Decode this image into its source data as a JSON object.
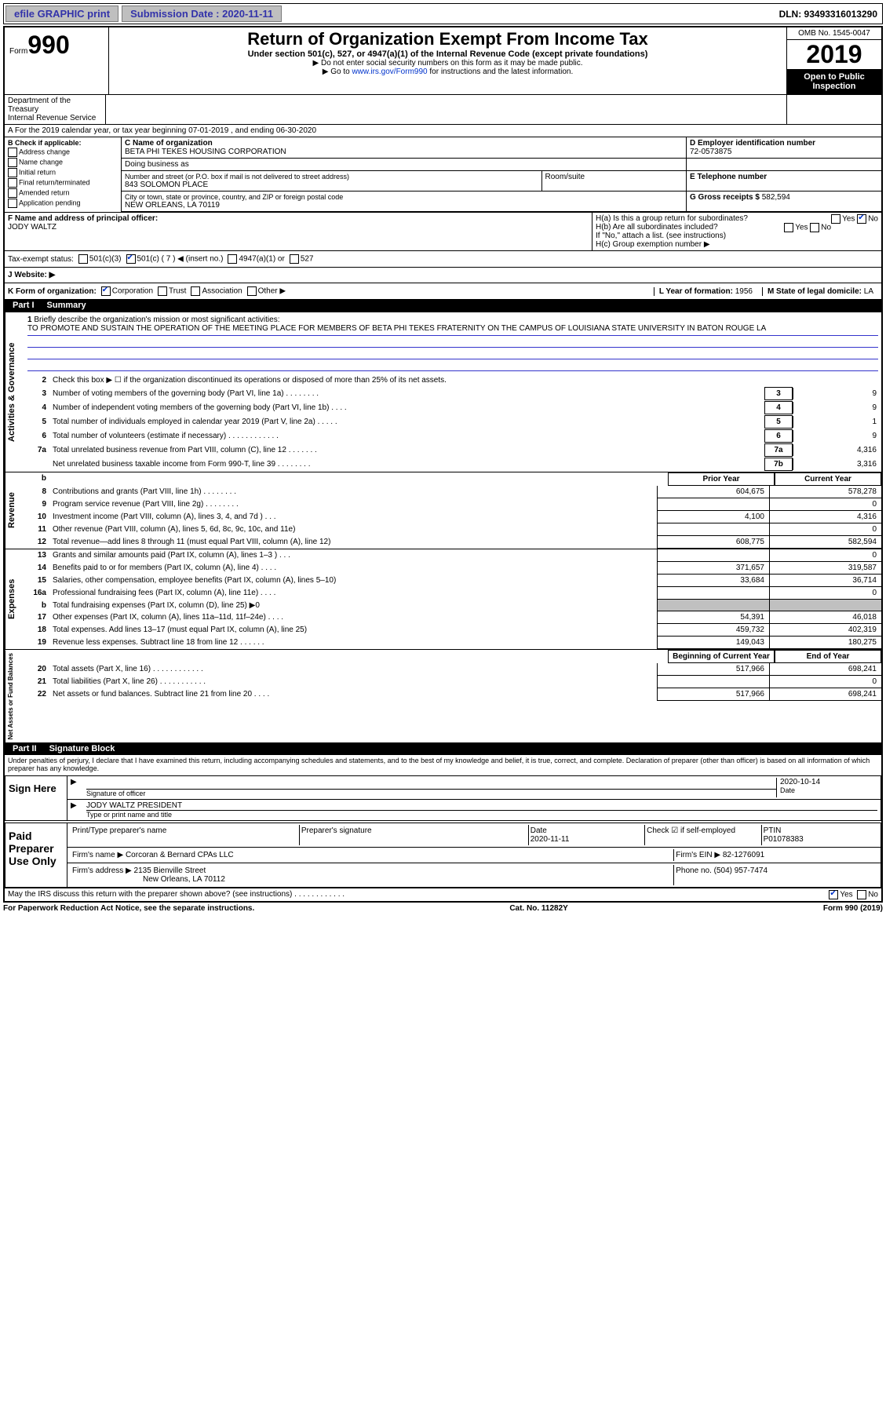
{
  "top_bar": {
    "efile_btn": "efile GRAPHIC print",
    "submission_label": "Submission Date : 2020-11-11",
    "dln": "DLN: 93493316013290"
  },
  "header": {
    "form_label": "Form",
    "form_number": "990",
    "title": "Return of Organization Exempt From Income Tax",
    "subtitle": "Under section 501(c), 527, or 4947(a)(1) of the Internal Revenue Code (except private foundations)",
    "note1": "▶ Do not enter social security numbers on this form as it may be made public.",
    "note2_pre": "▶ Go to ",
    "note2_link": "www.irs.gov/Form990",
    "note2_post": " for instructions and the latest information.",
    "omb": "OMB No. 1545-0047",
    "year": "2019",
    "open_public": "Open to Public Inspection",
    "dept": "Department of the Treasury\nInternal Revenue Service"
  },
  "section_a": {
    "line": "A For the 2019 calendar year, or tax year beginning 07-01-2019   , and ending 06-30-2020"
  },
  "section_b": {
    "heading": "B Check if applicable:",
    "opts": [
      "Address change",
      "Name change",
      "Initial return",
      "Final return/terminated",
      "Amended return",
      "Application pending"
    ]
  },
  "section_c": {
    "label_name": "C Name of organization",
    "org_name": "BETA PHI TEKES HOUSING CORPORATION",
    "dba_label": "Doing business as",
    "addr_label": "Number and street (or P.O. box if mail is not delivered to street address)",
    "room_label": "Room/suite",
    "addr": "843 SOLOMON PLACE",
    "city_label": "City or town, state or province, country, and ZIP or foreign postal code",
    "city": "NEW ORLEANS, LA  70119"
  },
  "section_d": {
    "label": "D Employer identification number",
    "value": "72-0573875"
  },
  "section_e": {
    "label": "E Telephone number",
    "value": ""
  },
  "section_g": {
    "label": "G Gross receipts $",
    "value": "582,594"
  },
  "section_f": {
    "label": "F  Name and address of principal officer:",
    "name": "JODY WALTZ"
  },
  "section_h": {
    "ha": "H(a)  Is this a group return for subordinates?",
    "hb": "H(b)  Are all subordinates included?",
    "hb_note": "If \"No,\" attach a list. (see instructions)",
    "hc": "H(c)  Group exemption number ▶",
    "yes": "Yes",
    "no": "No"
  },
  "tax_exempt": {
    "label": "Tax-exempt status:",
    "opt1": "501(c)(3)",
    "opt2": "501(c) ( 7 ) ◀ (insert no.)",
    "opt3": "4947(a)(1) or",
    "opt4": "527"
  },
  "section_j": {
    "label": "J   Website: ▶"
  },
  "section_k": {
    "label": "K Form of organization:",
    "opts": [
      "Corporation",
      "Trust",
      "Association",
      "Other ▶"
    ]
  },
  "section_l": {
    "label": "L Year of formation:",
    "value": "1956"
  },
  "section_m": {
    "label": "M State of legal domicile:",
    "value": "LA"
  },
  "part1": {
    "label": "Part I",
    "title": "Summary",
    "line1": "Briefly describe the organization's mission or most significant activities:",
    "mission": "TO PROMOTE AND SUSTAIN THE OPERATION OF THE MEETING PLACE FOR MEMBERS OF BETA PHI TEKES FRATERNITY ON THE CAMPUS OF LOUISIANA STATE UNIVERSITY IN BATON ROUGE LA",
    "line2": "Check this box ▶ ☐  if the organization discontinued its operations or disposed of more than 25% of its net assets.",
    "rows_top": [
      {
        "n": "3",
        "t": "Number of voting members of the governing body (Part VI, line 1a)  .   .   .   .   .   .   .   .",
        "box": "3",
        "v": "9"
      },
      {
        "n": "4",
        "t": "Number of independent voting members of the governing body (Part VI, line 1b)  .   .   .   .",
        "box": "4",
        "v": "9"
      },
      {
        "n": "5",
        "t": "Total number of individuals employed in calendar year 2019 (Part V, line 2a)  .   .   .   .   .",
        "box": "5",
        "v": "1"
      },
      {
        "n": "6",
        "t": "Total number of volunteers (estimate if necessary)   .   .   .   .   .   .   .   .   .   .   .   .",
        "box": "6",
        "v": "9"
      },
      {
        "n": "7a",
        "t": "Total unrelated business revenue from Part VIII, column (C), line 12  .   .   .   .   .   .   .",
        "box": "7a",
        "v": "4,316"
      },
      {
        "n": "",
        "t": "Net unrelated business taxable income from Form 990-T, line 39   .   .   .   .   .   .   .   .",
        "box": "7b",
        "v": "3,316"
      }
    ],
    "col_headers": {
      "b": "b",
      "prior": "Prior Year",
      "current": "Current Year"
    },
    "revenue": [
      {
        "n": "8",
        "t": "Contributions and grants (Part VIII, line 1h)   .   .   .   .   .   .   .   .",
        "p": "604,675",
        "c": "578,278"
      },
      {
        "n": "9",
        "t": "Program service revenue (Part VIII, line 2g)   .   .   .   .   .   .   .   .",
        "p": "",
        "c": "0"
      },
      {
        "n": "10",
        "t": "Investment income (Part VIII, column (A), lines 3, 4, and 7d )   .   .   .",
        "p": "4,100",
        "c": "4,316"
      },
      {
        "n": "11",
        "t": "Other revenue (Part VIII, column (A), lines 5, 6d, 8c, 9c, 10c, and 11e)",
        "p": "",
        "c": "0"
      },
      {
        "n": "12",
        "t": "Total revenue—add lines 8 through 11 (must equal Part VIII, column (A), line 12)",
        "p": "608,775",
        "c": "582,594"
      }
    ],
    "expenses": [
      {
        "n": "13",
        "t": "Grants and similar amounts paid (Part IX, column (A), lines 1–3 )  .   .   .",
        "p": "",
        "c": "0"
      },
      {
        "n": "14",
        "t": "Benefits paid to or for members (Part IX, column (A), line 4)  .   .   .   .",
        "p": "371,657",
        "c": "319,587"
      },
      {
        "n": "15",
        "t": "Salaries, other compensation, employee benefits (Part IX, column (A), lines 5–10)",
        "p": "33,684",
        "c": "36,714"
      },
      {
        "n": "16a",
        "t": "Professional fundraising fees (Part IX, column (A), line 11e)  .   .   .   .",
        "p": "",
        "c": "0"
      },
      {
        "n": "b",
        "t": "Total fundraising expenses (Part IX, column (D), line 25) ▶0",
        "p": "SHADED",
        "c": "SHADED"
      },
      {
        "n": "17",
        "t": "Other expenses (Part IX, column (A), lines 11a–11d, 11f–24e)  .   .   .   .",
        "p": "54,391",
        "c": "46,018"
      },
      {
        "n": "18",
        "t": "Total expenses. Add lines 13–17 (must equal Part IX, column (A), line 25)",
        "p": "459,732",
        "c": "402,319"
      },
      {
        "n": "19",
        "t": "Revenue less expenses. Subtract line 18 from line 12  .   .   .   .   .   .",
        "p": "149,043",
        "c": "180,275"
      }
    ],
    "net_headers": {
      "begin": "Beginning of Current Year",
      "end": "End of Year"
    },
    "net": [
      {
        "n": "20",
        "t": "Total assets (Part X, line 16)  .   .   .   .   .   .   .   .   .   .   .   .",
        "p": "517,966",
        "c": "698,241"
      },
      {
        "n": "21",
        "t": "Total liabilities (Part X, line 26)  .   .   .   .   .   .   .   .   .   .   .",
        "p": "",
        "c": "0"
      },
      {
        "n": "22",
        "t": "Net assets or fund balances. Subtract line 21 from line 20   .   .   .   .",
        "p": "517,966",
        "c": "698,241"
      }
    ],
    "vert_labels": {
      "gov": "Activities & Governance",
      "rev": "Revenue",
      "exp": "Expenses",
      "net": "Net Assets or Fund Balances"
    }
  },
  "part2": {
    "label": "Part II",
    "title": "Signature Block",
    "declaration": "Under penalties of perjury, I declare that I have examined this return, including accompanying schedules and statements, and to the best of my knowledge and belief, it is true, correct, and complete. Declaration of preparer (other than officer) is based on all information of which preparer has any knowledge."
  },
  "sign_here": {
    "label": "Sign Here",
    "sig_officer": "Signature of officer",
    "date_label": "Date",
    "date": "2020-10-14",
    "name_title": "JODY WALTZ  PRESIDENT",
    "type_label": "Type or print name and title"
  },
  "paid_prep": {
    "label": "Paid Preparer Use Only",
    "print_name_label": "Print/Type preparer's name",
    "sig_label": "Preparer's signature",
    "date_label": "Date",
    "date": "2020-11-11",
    "check_label": "Check ☑ if self-employed",
    "ptin_label": "PTIN",
    "ptin": "P01078383",
    "firm_name_label": "Firm's name    ▶",
    "firm_name": "Corcoran & Bernard CPAs LLC",
    "firm_ein_label": "Firm's EIN ▶",
    "firm_ein": "82-1276091",
    "firm_addr_label": "Firm's address ▶",
    "firm_addr": "2135 Bienville Street",
    "firm_city": "New Orleans, LA  70112",
    "phone_label": "Phone no.",
    "phone": "(504) 957-7474"
  },
  "irs_discuss": {
    "text": "May the IRS discuss this return with the preparer shown above? (see instructions)   .   .   .   .   .   .   .   .   .   .   .   .",
    "yes": "Yes",
    "no": "No"
  },
  "footer": {
    "left": "For Paperwork Reduction Act Notice, see the separate instructions.",
    "mid": "Cat. No. 11282Y",
    "right": "Form 990 (2019)"
  }
}
